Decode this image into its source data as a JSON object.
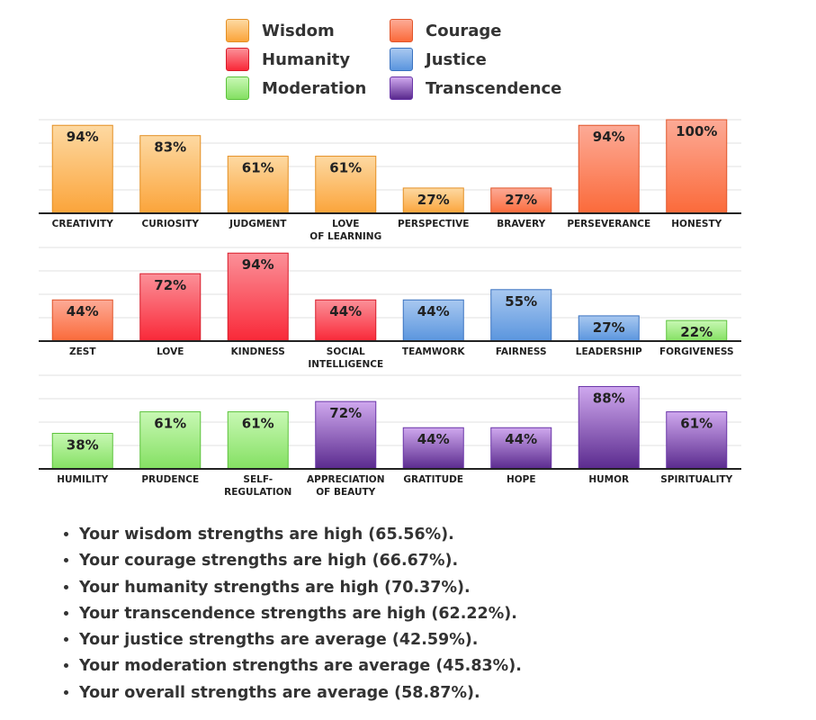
{
  "legend": [
    {
      "label": "Wisdom",
      "color": "#f9a94a"
    },
    {
      "label": "Courage",
      "color": "#fa6b44"
    },
    {
      "label": "Humanity",
      "color": "#f94a56"
    },
    {
      "label": "Justice",
      "color": "#4a8ff0"
    },
    {
      "label": "Moderation",
      "color": "#7fe060"
    },
    {
      "label": "Transcendence",
      "color": "#9a55d6"
    }
  ],
  "chart_data": [
    {
      "type": "bar",
      "title": "",
      "ylim": [
        0,
        100
      ],
      "categories": [
        "CREATIVITY",
        "CURIOSITY",
        "JUDGMENT",
        "LOVE\nOF LEARNING",
        "PERSPECTIVE",
        "BRAVERY",
        "PERSEVERANCE",
        "HONESTY"
      ],
      "values": [
        94,
        83,
        61,
        61,
        27,
        27,
        94,
        100
      ],
      "labels": [
        "94%",
        "83%",
        "61%",
        "61%",
        "27%",
        "27%",
        "94%",
        "100%"
      ],
      "groups": [
        "wisdom",
        "wisdom",
        "wisdom",
        "wisdom",
        "wisdom",
        "courage",
        "courage",
        "courage"
      ]
    },
    {
      "type": "bar",
      "title": "",
      "ylim": [
        0,
        100
      ],
      "categories": [
        "ZEST",
        "LOVE",
        "KINDNESS",
        "SOCIAL\nINTELLIGENCE",
        "TEAMWORK",
        "FAIRNESS",
        "LEADERSHIP",
        "FORGIVENESS"
      ],
      "values": [
        44,
        72,
        94,
        44,
        44,
        55,
        27,
        22
      ],
      "labels": [
        "44%",
        "72%",
        "94%",
        "44%",
        "44%",
        "55%",
        "27%",
        "22%"
      ],
      "groups": [
        "courage",
        "humanity",
        "humanity",
        "humanity",
        "justice",
        "justice",
        "justice",
        "moderation"
      ]
    },
    {
      "type": "bar",
      "title": "",
      "ylim": [
        0,
        100
      ],
      "categories": [
        "HUMILITY",
        "PRUDENCE",
        "SELF-\nREGULATION",
        "APPRECIATION\nOF BEAUTY",
        "GRATITUDE",
        "HOPE",
        "HUMOR",
        "SPIRITUALITY"
      ],
      "values": [
        38,
        61,
        61,
        72,
        44,
        44,
        88,
        61
      ],
      "labels": [
        "38%",
        "61%",
        "61%",
        "72%",
        "44%",
        "44%",
        "88%",
        "61%"
      ],
      "groups": [
        "moderation",
        "moderation",
        "moderation",
        "transcendence",
        "transcendence",
        "transcendence",
        "transcendence",
        "transcendence"
      ]
    }
  ],
  "group_colors": {
    "wisdom": {
      "top": "#fdd9a2",
      "bottom": "#fba43a",
      "stroke": "#e48f24"
    },
    "courage": {
      "top": "#fcaa96",
      "bottom": "#fb6a3a",
      "stroke": "#e0552a"
    },
    "humanity": {
      "top": "#fb9098",
      "bottom": "#f92838",
      "stroke": "#d81c2a"
    },
    "justice": {
      "top": "#a8c8f0",
      "bottom": "#5a95de",
      "stroke": "#3a72c0"
    },
    "moderation": {
      "top": "#c8f8b4",
      "bottom": "#84e062",
      "stroke": "#5cc23c"
    },
    "transcendence": {
      "top": "#cfa8ee",
      "bottom": "#5a2a8e",
      "stroke": "#6a36a8"
    }
  },
  "summary": [
    "Your wisdom strengths are high (65.56%).",
    "Your courage strengths are high (66.67%).",
    "Your humanity strengths are high (70.37%).",
    "Your transcendence strengths are high (62.22%).",
    "Your justice strengths are average (42.59%).",
    "Your moderation strengths are average (45.83%).",
    "Your overall strengths are average (58.87%)."
  ]
}
